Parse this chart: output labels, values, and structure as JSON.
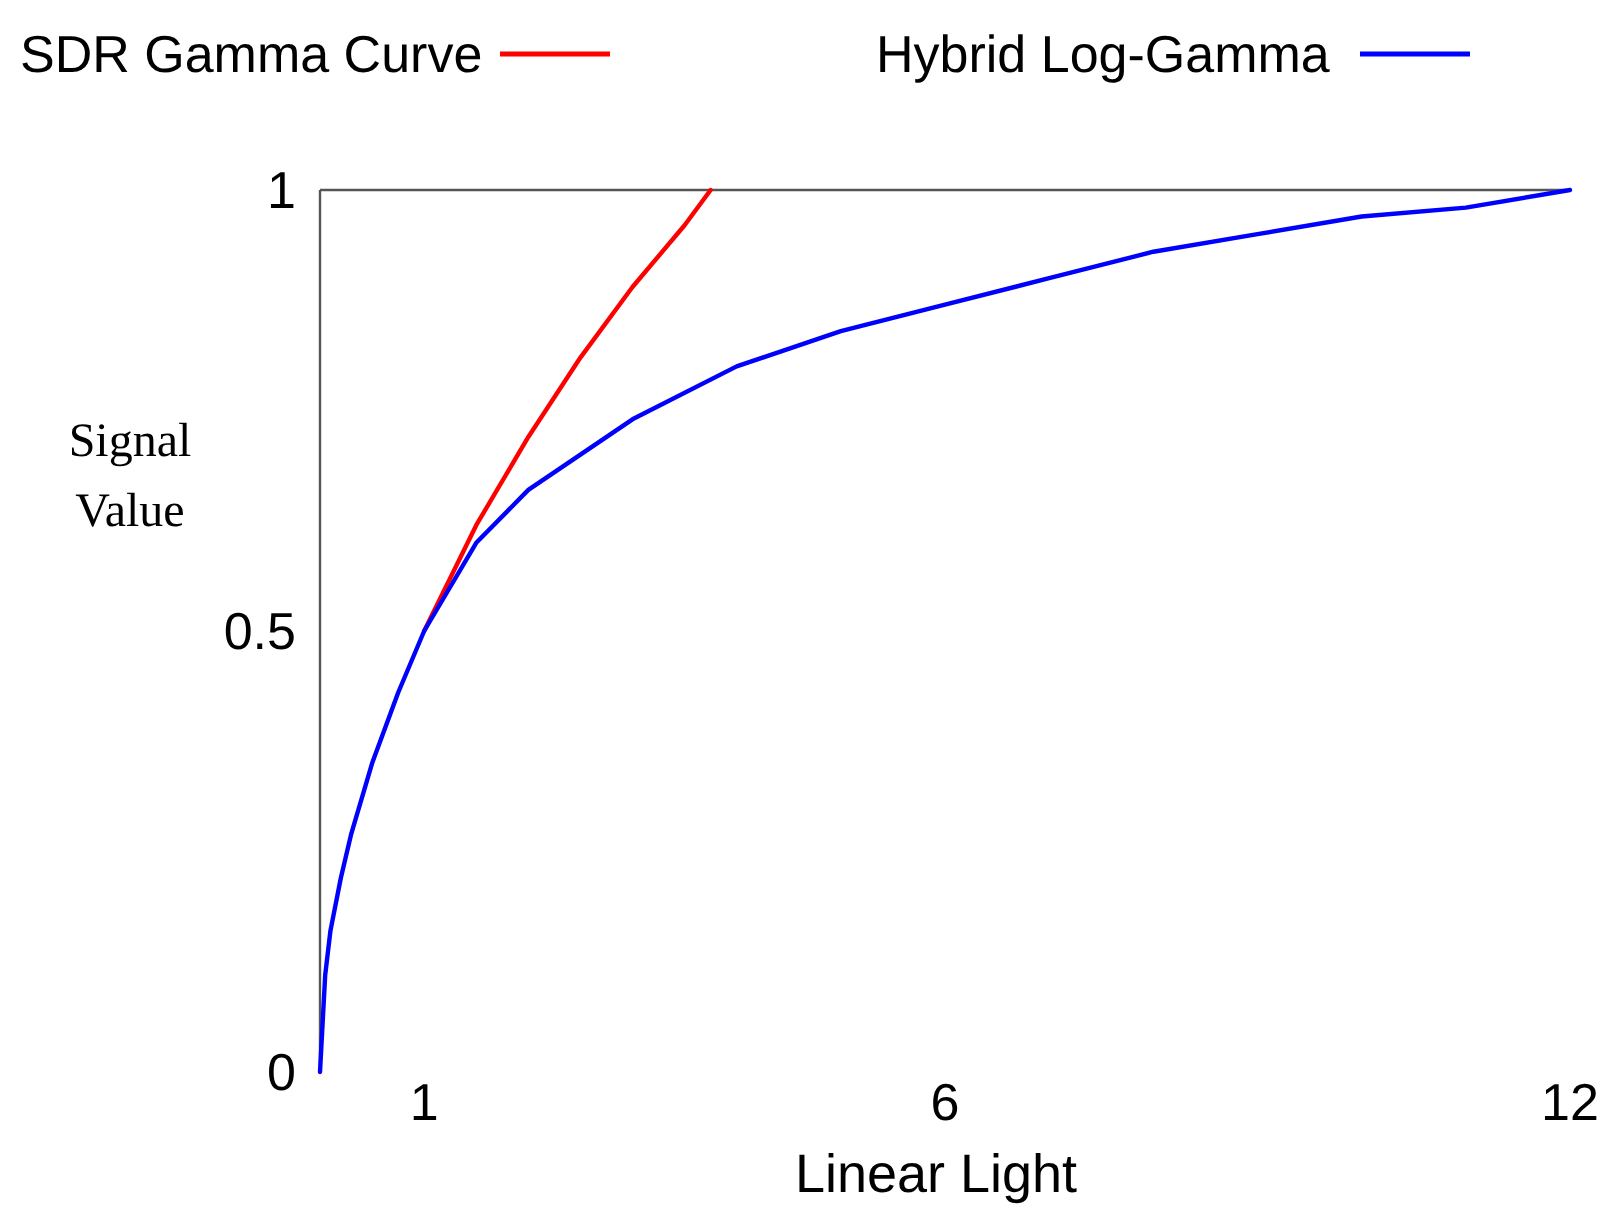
{
  "chart_data": {
    "type": "line",
    "xlabel": "Linear Light",
    "ylabel": "Signal Value",
    "xlim": [
      0,
      12
    ],
    "ylim": [
      0,
      1
    ],
    "xticks": [
      1,
      6,
      12
    ],
    "yticks": [
      0,
      0.5,
      1
    ],
    "legend": "top",
    "line_style": "solid",
    "series": [
      {
        "name": "SDR Gamma Curve",
        "color": "#ff0000",
        "x": [
          1,
          1.5,
          2,
          2.5,
          3,
          3.5,
          3.75
        ],
        "values": [
          0.5,
          0.62,
          0.72,
          0.81,
          0.89,
          0.96,
          1
        ]
      },
      {
        "name": "Hybrid Log-Gamma",
        "color": "#0000ff",
        "x": [
          0,
          0.05,
          0.1,
          0.2,
          0.3,
          0.5,
          0.75,
          1,
          1.5,
          2,
          3,
          4,
          5,
          6,
          7,
          8,
          9,
          10,
          11,
          12
        ],
        "values": [
          0,
          0.11,
          0.16,
          0.22,
          0.27,
          0.35,
          0.43,
          0.5,
          0.6,
          0.66,
          0.74,
          0.8,
          0.84,
          0.87,
          0.9,
          0.93,
          0.95,
          0.97,
          0.98,
          1
        ]
      }
    ]
  }
}
